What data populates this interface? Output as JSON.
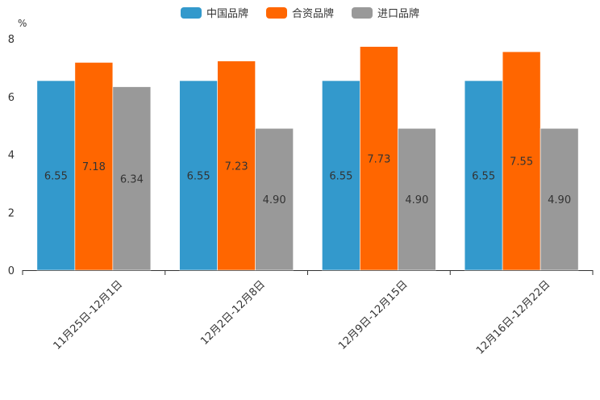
{
  "chart_data": {
    "type": "bar",
    "title": "",
    "ylabel": "%",
    "xlabel": "",
    "ylim": [
      0,
      8
    ],
    "yticks": [
      0,
      2,
      4,
      6,
      8
    ],
    "categories": [
      "11月25日-12月1日",
      "12月2日-12月8日",
      "12月9日-12月15日",
      "12月16日-12月22日"
    ],
    "series": [
      {
        "name": "中国品牌",
        "color": "#3399cc",
        "values": [
          6.55,
          6.55,
          6.55,
          6.55
        ],
        "labels": [
          "6.55",
          "6.55",
          "6.55",
          "6.55"
        ]
      },
      {
        "name": "合资品牌",
        "color": "#ff6600",
        "values": [
          7.18,
          7.23,
          7.73,
          7.55
        ],
        "labels": [
          "7.18",
          "7.23",
          "7.73",
          "7.55"
        ]
      },
      {
        "name": "进口品牌",
        "color": "#999999",
        "values": [
          6.34,
          4.9,
          4.9,
          4.9
        ],
        "labels": [
          "6.34",
          "4.90",
          "4.90",
          "4.90"
        ]
      }
    ]
  }
}
